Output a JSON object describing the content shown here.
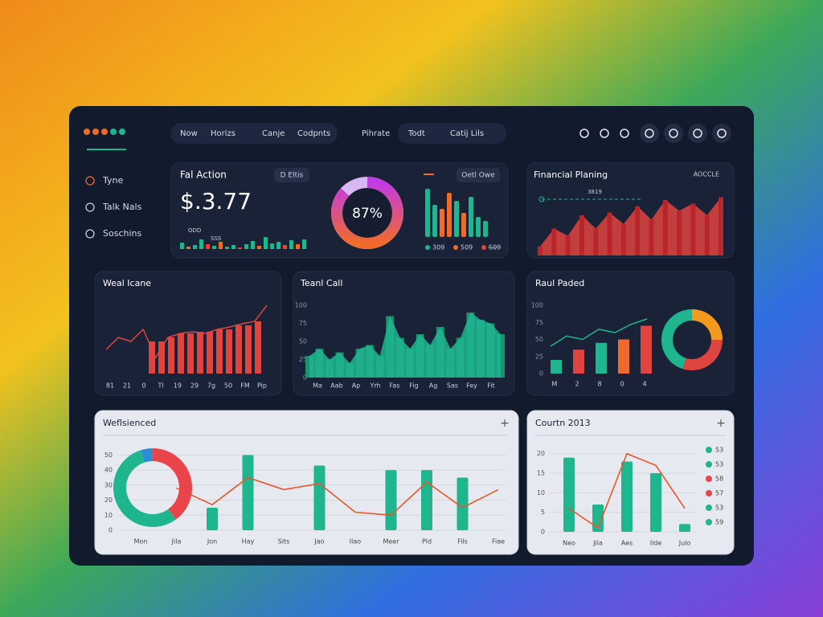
{
  "header": {
    "tabs": [
      "Now",
      "Horizs",
      "Canje",
      "Codpnts",
      "Pihrate",
      "Todt",
      "Catij Lils"
    ]
  },
  "sidebar": {
    "items": [
      "Tyne",
      "Talk Nals",
      "Soschins"
    ]
  },
  "fal_action": {
    "title": "Fal Action",
    "badge": "D Eltis",
    "amount": "$.3.77",
    "mini_labels": [
      "ODD",
      "SSS"
    ],
    "mini_bars": {
      "ylim": [
        0,
        30
      ],
      "values": [
        8,
        3,
        5,
        12,
        6,
        4,
        9,
        3,
        5,
        2,
        6,
        10,
        4,
        15,
        7,
        9,
        5,
        11,
        6,
        12
      ],
      "colors": [
        "#1fb58f",
        "#ef6b2c",
        "#1fb58f",
        "#1fb58f",
        "#e0443f",
        "#1fb58f",
        "#ef6b2c",
        "#1fb58f",
        "#1fb58f",
        "#e0443f",
        "#1fb58f",
        "#1fb58f",
        "#ef6b2c",
        "#1fb58f",
        "#1fb58f",
        "#1fb58f",
        "#e0443f",
        "#1fb58f",
        "#ef6b2c",
        "#1fb58f"
      ]
    },
    "gauge": {
      "value": 87,
      "label": "87%"
    },
    "badge2": "Oetl Owe",
    "bars": {
      "ylim": [
        0,
        60
      ],
      "values": [
        60,
        40,
        35,
        55,
        45,
        30,
        50,
        25,
        20
      ],
      "colors": [
        "#1fb58f",
        "#1fb58f",
        "#ef6b2c",
        "#ef6b2c",
        "#1fb58f",
        "#ef6b2c",
        "#1fb58f",
        "#1fb58f",
        "#1fb58f"
      ]
    },
    "legend": [
      {
        "name": "309",
        "color": "#1fb58f"
      },
      {
        "name": "509",
        "color": "#ef6b2c"
      },
      {
        "name": "S09",
        "color": "#e0443f"
      }
    ]
  },
  "financial": {
    "title": "Financial Planing",
    "link": "AOCCLE",
    "target_label": "3819",
    "ylim": [
      0,
      70
    ],
    "values": [
      10,
      30,
      22,
      45,
      30,
      48,
      35,
      55,
      40,
      62,
      50,
      58,
      45,
      65
    ],
    "color": "#e0443f"
  },
  "weal": {
    "title": "Weal Icane",
    "ylim": [
      0,
      100
    ],
    "color": "#e0443f",
    "bars": [
      40,
      40,
      45,
      50,
      50,
      52,
      52,
      55,
      55,
      60,
      60,
      65
    ],
    "line": [
      30,
      45,
      40,
      55,
      20,
      45,
      50,
      52,
      50,
      55,
      58,
      62,
      65,
      85
    ],
    "x_labels": [
      "81",
      "21",
      "0",
      "Tl",
      "19",
      "29",
      "7g",
      "50",
      "FM",
      "Pip"
    ]
  },
  "teanl": {
    "title": "Teanl Call",
    "ylim": [
      0,
      100
    ],
    "yticks": [
      0,
      25,
      50,
      75,
      100
    ],
    "color": "#1fb58f",
    "values": [
      30,
      40,
      25,
      35,
      20,
      40,
      45,
      30,
      85,
      55,
      40,
      60,
      45,
      70,
      40,
      55,
      90,
      80,
      75,
      60
    ],
    "x_labels": [
      "Ma",
      "Aab",
      "Ap",
      "Yrh",
      "Fas",
      "Fig",
      "Ag",
      "Sas",
      "Fey",
      "Fit"
    ]
  },
  "raul": {
    "title": "Raul Paded",
    "ylim": [
      0,
      100
    ],
    "yticks": [
      0,
      25,
      50,
      75,
      100
    ],
    "bars": [
      20,
      35,
      45,
      50,
      70
    ],
    "bar_colors": [
      "#1fb58f",
      "#e0443f",
      "#1fb58f",
      "#ef6b2c",
      "#e0443f"
    ],
    "line": [
      40,
      55,
      50,
      65,
      60,
      72,
      80
    ],
    "line_color": "#1fb58f",
    "x_labels": [
      "M",
      "2",
      "8",
      "0",
      "4"
    ],
    "donut": {
      "values": [
        25,
        30,
        45
      ],
      "colors": [
        "#f39a1e",
        "#e0443f",
        "#1fb58f"
      ]
    }
  },
  "weflsienced": {
    "title": "Weflsienced",
    "ylim": [
      0,
      55
    ],
    "yticks": [
      0,
      10,
      20,
      30,
      40,
      50
    ],
    "categories": [
      "Mon",
      "Jila",
      "Jon",
      "Hay",
      "Sits",
      "Jao",
      "Ilao",
      "Meer",
      "Pld",
      "Fils",
      "Fiae"
    ],
    "bars": [
      null,
      null,
      15,
      50,
      null,
      43,
      null,
      40,
      40,
      35,
      null
    ],
    "bar_color": "#1fb58f",
    "line": [
      null,
      28,
      17,
      35,
      27,
      31,
      12,
      10,
      32,
      15,
      27
    ],
    "line_color": "#e8572a",
    "donut": {
      "values": [
        40,
        55,
        5
      ],
      "colors": [
        "#e8444a",
        "#1fb58f",
        "#2b8fd6"
      ]
    }
  },
  "courtn": {
    "title": "Courtn 2013",
    "ylim": [
      0,
      22
    ],
    "yticks": [
      0,
      5,
      10,
      15,
      20
    ],
    "categories": [
      "Neo",
      "Jila",
      "Aes",
      "Ilde",
      "Julo"
    ],
    "bars": [
      19,
      7,
      18,
      15,
      2
    ],
    "bar_color": "#1fb58f",
    "line": [
      6,
      1,
      20,
      17,
      6
    ],
    "line_color": "#e8572a",
    "legend": [
      {
        "name": "53",
        "color": "#1fb58f"
      },
      {
        "name": "53",
        "color": "#1fb58f"
      },
      {
        "name": "58",
        "color": "#e8444a"
      },
      {
        "name": "57",
        "color": "#e8444a"
      },
      {
        "name": "53",
        "color": "#1fb58f"
      },
      {
        "name": "59",
        "color": "#1fb58f"
      }
    ]
  }
}
